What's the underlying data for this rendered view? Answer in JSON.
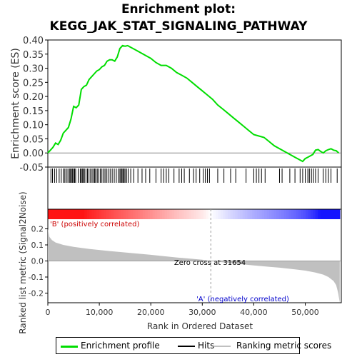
{
  "title_line1": "Enrichment plot:",
  "title_line2": "KEGG_JAK_STAT_SIGNALING_PATHWAY",
  "chart_data": [
    {
      "type": "line",
      "ylabel": "Enrichment score (ES)",
      "ylim": [
        -0.05,
        0.4
      ],
      "xlim": [
        0,
        57000
      ],
      "yticks": [
        "0.40",
        "0.35",
        "0.30",
        "0.25",
        "0.20",
        "0.15",
        "0.10",
        "0.05",
        "0.00",
        "-0.05"
      ],
      "ytick_values": [
        0.4,
        0.35,
        0.3,
        0.25,
        0.2,
        0.15,
        0.1,
        0.05,
        0.0,
        -0.05
      ],
      "series": [
        {
          "name": "Enrichment profile",
          "color": "#00dd00",
          "x": [
            0,
            500,
            1000,
            1500,
            2000,
            2500,
            3000,
            3500,
            4000,
            4500,
            5000,
            5500,
            6000,
            6500,
            7000,
            7500,
            8000,
            8500,
            9000,
            9500,
            10000,
            10500,
            11000,
            11500,
            12000,
            12500,
            13000,
            13500,
            14000,
            14500,
            15000,
            15500,
            16000,
            17000,
            18000,
            19000,
            20000,
            21000,
            22000,
            23000,
            24000,
            25000,
            26000,
            27000,
            28000,
            29000,
            30000,
            31000,
            32000,
            33000,
            34000,
            35000,
            36000,
            37000,
            38000,
            39000,
            40000,
            41000,
            42000,
            43000,
            44000,
            45000,
            46000,
            47000,
            48000,
            49000,
            49500,
            50000,
            50500,
            51000,
            51500,
            52000,
            52500,
            53000,
            53500,
            54000,
            54500,
            55000,
            55500,
            56000,
            56500
          ],
          "y": [
            0.0,
            0.01,
            0.02,
            0.035,
            0.03,
            0.045,
            0.07,
            0.08,
            0.09,
            0.12,
            0.165,
            0.16,
            0.17,
            0.225,
            0.235,
            0.24,
            0.26,
            0.27,
            0.28,
            0.29,
            0.295,
            0.305,
            0.31,
            0.325,
            0.33,
            0.33,
            0.325,
            0.34,
            0.37,
            0.38,
            0.378,
            0.38,
            0.375,
            0.365,
            0.355,
            0.345,
            0.335,
            0.32,
            0.31,
            0.31,
            0.3,
            0.285,
            0.275,
            0.265,
            0.25,
            0.235,
            0.22,
            0.205,
            0.19,
            0.17,
            0.155,
            0.14,
            0.125,
            0.11,
            0.095,
            0.08,
            0.065,
            0.06,
            0.055,
            0.04,
            0.025,
            0.015,
            0.005,
            -0.005,
            -0.015,
            -0.025,
            -0.03,
            -0.02,
            -0.015,
            -0.01,
            -0.005,
            0.01,
            0.012,
            0.005,
            0.0,
            0.008,
            0.012,
            0.015,
            0.01,
            0.008,
            0.0
          ]
        }
      ]
    },
    {
      "type": "scatter",
      "name_in_legend": "Hits",
      "hits_x": [
        600,
        900,
        1300,
        1700,
        2200,
        2600,
        3000,
        3300,
        3600,
        3900,
        4200,
        4400,
        4600,
        4800,
        5000,
        5200,
        5400,
        5900,
        6300,
        6500,
        6700,
        6900,
        7100,
        7400,
        7700,
        8000,
        8300,
        8600,
        8900,
        9100,
        9300,
        9600,
        9900,
        10200,
        10500,
        10800,
        11100,
        11400,
        11700,
        12100,
        12500,
        12900,
        13300,
        13700,
        14000,
        14200,
        14400,
        14600,
        14800,
        15000,
        15300,
        15600,
        16100,
        16700,
        17500,
        18300,
        19000,
        19800,
        21000,
        22000,
        22500,
        23000,
        23500,
        24500,
        25500,
        26000,
        26500,
        27500,
        28300,
        28800,
        29500,
        30200,
        30600,
        31000,
        31400,
        33000,
        34200,
        35500,
        36500,
        38500,
        40000,
        40500,
        41000,
        41500,
        42200,
        45000,
        45500,
        47000,
        48000,
        49000,
        49500,
        50000,
        50500,
        50800,
        51200,
        51600,
        52000,
        52500,
        53500,
        54000,
        54500,
        55000,
        56200
      ]
    },
    {
      "type": "area",
      "ylabel": "Ranked list metric (Signal2Noise)",
      "xlabel": "Rank in Ordered Dataset",
      "ylim": [
        -0.26,
        0.26
      ],
      "yticks": [
        "0.2",
        "0.1",
        "0.0",
        "-0.1",
        "-0.2"
      ],
      "ytick_values": [
        0.2,
        0.1,
        0.0,
        -0.1,
        -0.2
      ],
      "xticks": [
        "0",
        "10,000",
        "20,000",
        "30,000",
        "40,000",
        "50,000"
      ],
      "xtick_values": [
        0,
        10000,
        20000,
        30000,
        40000,
        50000
      ],
      "metric_x": [
        0,
        300,
        800,
        1500,
        3000,
        5000,
        8000,
        12000,
        16000,
        20000,
        25000,
        30000,
        31654,
        35000,
        40000,
        45000,
        48000,
        50000,
        52000,
        53500,
        54500,
        55500,
        56000,
        56400,
        56700
      ],
      "metric_y": [
        0.2,
        0.15,
        0.13,
        0.115,
        0.1,
        0.088,
        0.075,
        0.062,
        0.05,
        0.038,
        0.022,
        0.008,
        0.0,
        -0.012,
        -0.028,
        -0.042,
        -0.052,
        -0.06,
        -0.072,
        -0.085,
        -0.1,
        -0.125,
        -0.15,
        -0.2,
        -0.26
      ],
      "annotations": {
        "zero_cross": "Zero cross at 31654",
        "zero_cross_x": 31654,
        "pos_label": "'B' (positively correlated)",
        "neg_label": "'A' (negatively correlated)"
      }
    }
  ],
  "legend": {
    "items": [
      {
        "label": "Enrichment profile",
        "color": "#00dd00"
      },
      {
        "label": "Hits",
        "color": "#000000"
      },
      {
        "label": "Ranking metric scores",
        "color": "#c0c0c0"
      }
    ]
  }
}
